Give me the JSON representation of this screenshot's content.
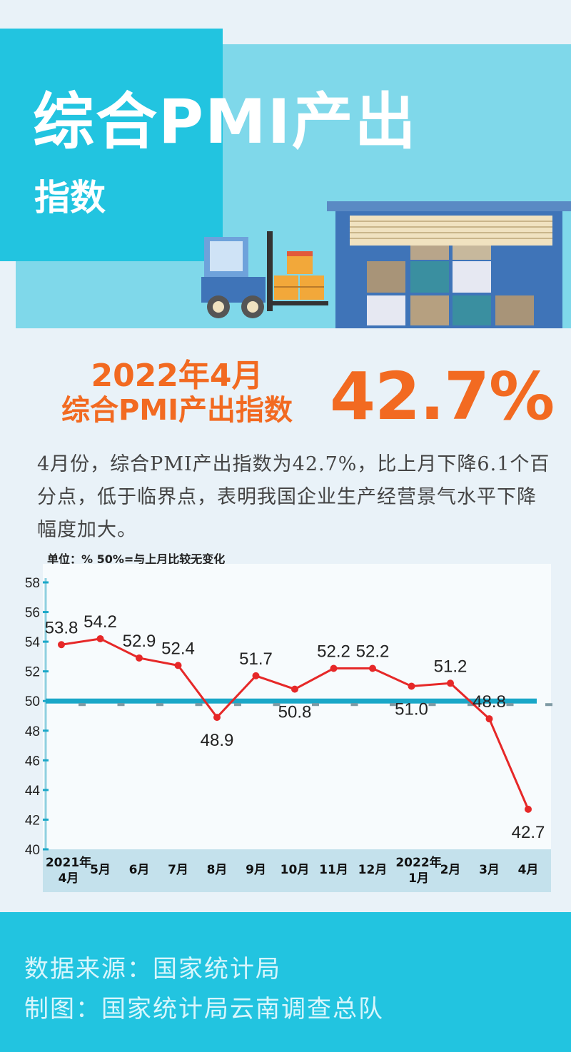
{
  "header": {
    "title_line1": "综合PMI产出",
    "title_line2": "指数"
  },
  "headline": {
    "date": "2022年4月",
    "name": "综合PMI产出指数",
    "value": "42.7%"
  },
  "description": "4月份，综合PMI产出指数为42.7%，比上月下降6.1个百分点，低于临界点，表明我国企业生产经营景气水平下降幅度加大。",
  "unit_note": "单位：%  50%=与上月比较无变化",
  "chart_data": {
    "type": "line",
    "categories": [
      "2021年4月",
      "5月",
      "6月",
      "7月",
      "8月",
      "9月",
      "10月",
      "11月",
      "12月",
      "2022年1月",
      "2月",
      "3月",
      "4月"
    ],
    "values": [
      53.8,
      54.2,
      52.9,
      52.4,
      48.9,
      51.7,
      50.8,
      52.2,
      52.2,
      51.0,
      51.2,
      48.8,
      42.7
    ],
    "value_labels": [
      "53.8",
      "54.2",
      "52.9",
      "52.4",
      "48.9",
      "51.7",
      "50.8",
      "52.2",
      "52.2",
      "51.0",
      "51.2",
      "48.8",
      "42.7"
    ],
    "ylim": [
      40,
      58
    ],
    "yticks": [
      40,
      42,
      44,
      46,
      48,
      50,
      52,
      54,
      56,
      58
    ],
    "reference_line": 50,
    "series_color": "#e62828",
    "reference_color": "#1aa7c8"
  },
  "footer": {
    "source": "数据来源：国家统计局",
    "credit": "制图：国家统计局云南调查总队"
  },
  "colors": {
    "accent": "#f26a21",
    "header_primary": "#22c4e0",
    "header_light": "#7fd8ea"
  }
}
